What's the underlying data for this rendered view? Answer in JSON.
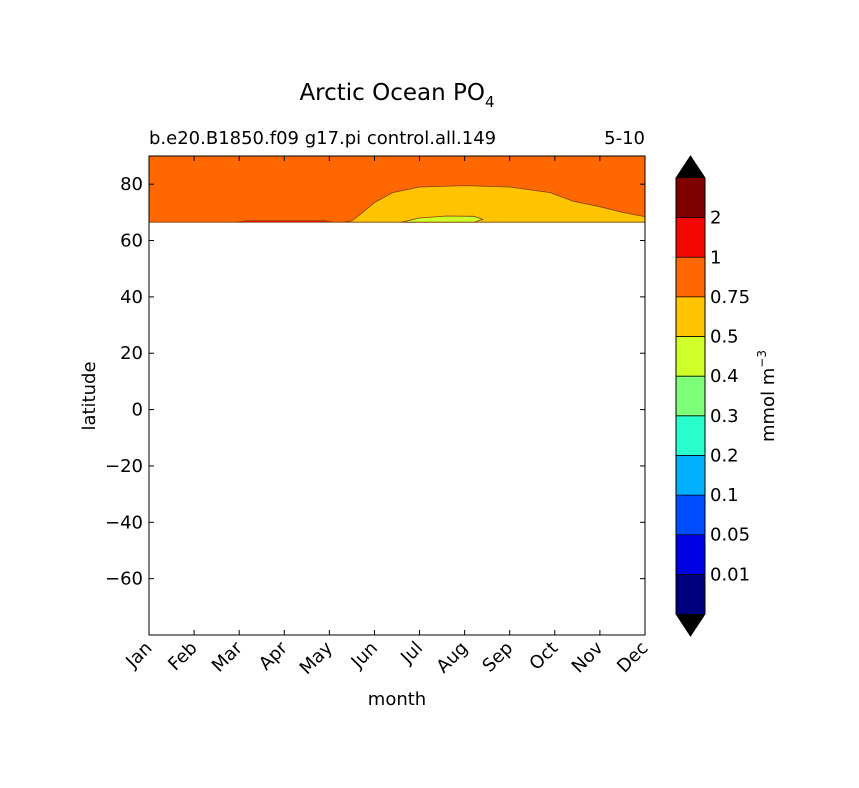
{
  "chart_data": {
    "type": "heatmap",
    "title": {
      "main": "Arctic Ocean PO",
      "sub": "4"
    },
    "subtitle_left": "b.e20.B1850.f09 g17.pi control.all.149",
    "subtitle_right": "5-10",
    "xlabel": "month",
    "ylabel": "latitude",
    "x_tick_labels": [
      "Jan",
      "Feb",
      "Mar",
      "Apr",
      "May",
      "Jun",
      "Jul",
      "Aug",
      "Sep",
      "Oct",
      "Nov",
      "Dec"
    ],
    "xlim": [
      0,
      11
    ],
    "ylim": [
      -80,
      90
    ],
    "y_ticks": [
      80,
      60,
      40,
      20,
      0,
      -20,
      -40,
      -60
    ],
    "y_tick_labels": [
      "80",
      "60",
      "40",
      "20",
      "0",
      "−20",
      "−40",
      "−60"
    ],
    "data_extent_lat": [
      66.5,
      90
    ],
    "contour_0_75_north_boundary": [
      {
        "month": 0,
        "lat": 66.5
      },
      {
        "month": 3.0,
        "lat": 66.5
      },
      {
        "month": 4.3,
        "lat": 66.5
      },
      {
        "month": 4.5,
        "lat": 67.0
      },
      {
        "month": 4.7,
        "lat": 69.5
      },
      {
        "month": 5.0,
        "lat": 73.5
      },
      {
        "month": 5.4,
        "lat": 77.0
      },
      {
        "month": 6.0,
        "lat": 79.0
      },
      {
        "month": 7.0,
        "lat": 79.5
      },
      {
        "month": 8.0,
        "lat": 79.0
      },
      {
        "month": 8.9,
        "lat": 77.0
      },
      {
        "month": 9.4,
        "lat": 74.0
      },
      {
        "month": 10.0,
        "lat": 72.0
      },
      {
        "month": 10.5,
        "lat": 70.0
      },
      {
        "month": 11.0,
        "lat": 68.5
      }
    ],
    "contour_0_5_region": [
      {
        "month": 5.6,
        "lat": 66.5
      },
      {
        "month": 6.0,
        "lat": 68.0
      },
      {
        "month": 6.6,
        "lat": 68.7
      },
      {
        "month": 7.2,
        "lat": 68.6
      },
      {
        "month": 7.4,
        "lat": 67.5
      },
      {
        "month": 7.2,
        "lat": 66.5
      }
    ],
    "colorbar": {
      "label": "mmol m",
      "label_exponent": "−3",
      "boundaries": [
        "0.01",
        "0.05",
        "0.1",
        "0.2",
        "0.3",
        "0.4",
        "0.5",
        "0.75",
        "1",
        "2"
      ],
      "colors": [
        "#00007f",
        "#0000e5",
        "#004cff",
        "#00b0ff",
        "#29ffce",
        "#7dff7a",
        "#ceff29",
        "#ffc400",
        "#ff6800",
        "#f20800",
        "#7f0000"
      ],
      "extend": "both",
      "under_color": "#000000",
      "over_color": "#000000"
    },
    "colors": {
      "frame": "#000000",
      "background": "#ffffff",
      "contour_line": "#7f3f00"
    },
    "grid": false
  }
}
